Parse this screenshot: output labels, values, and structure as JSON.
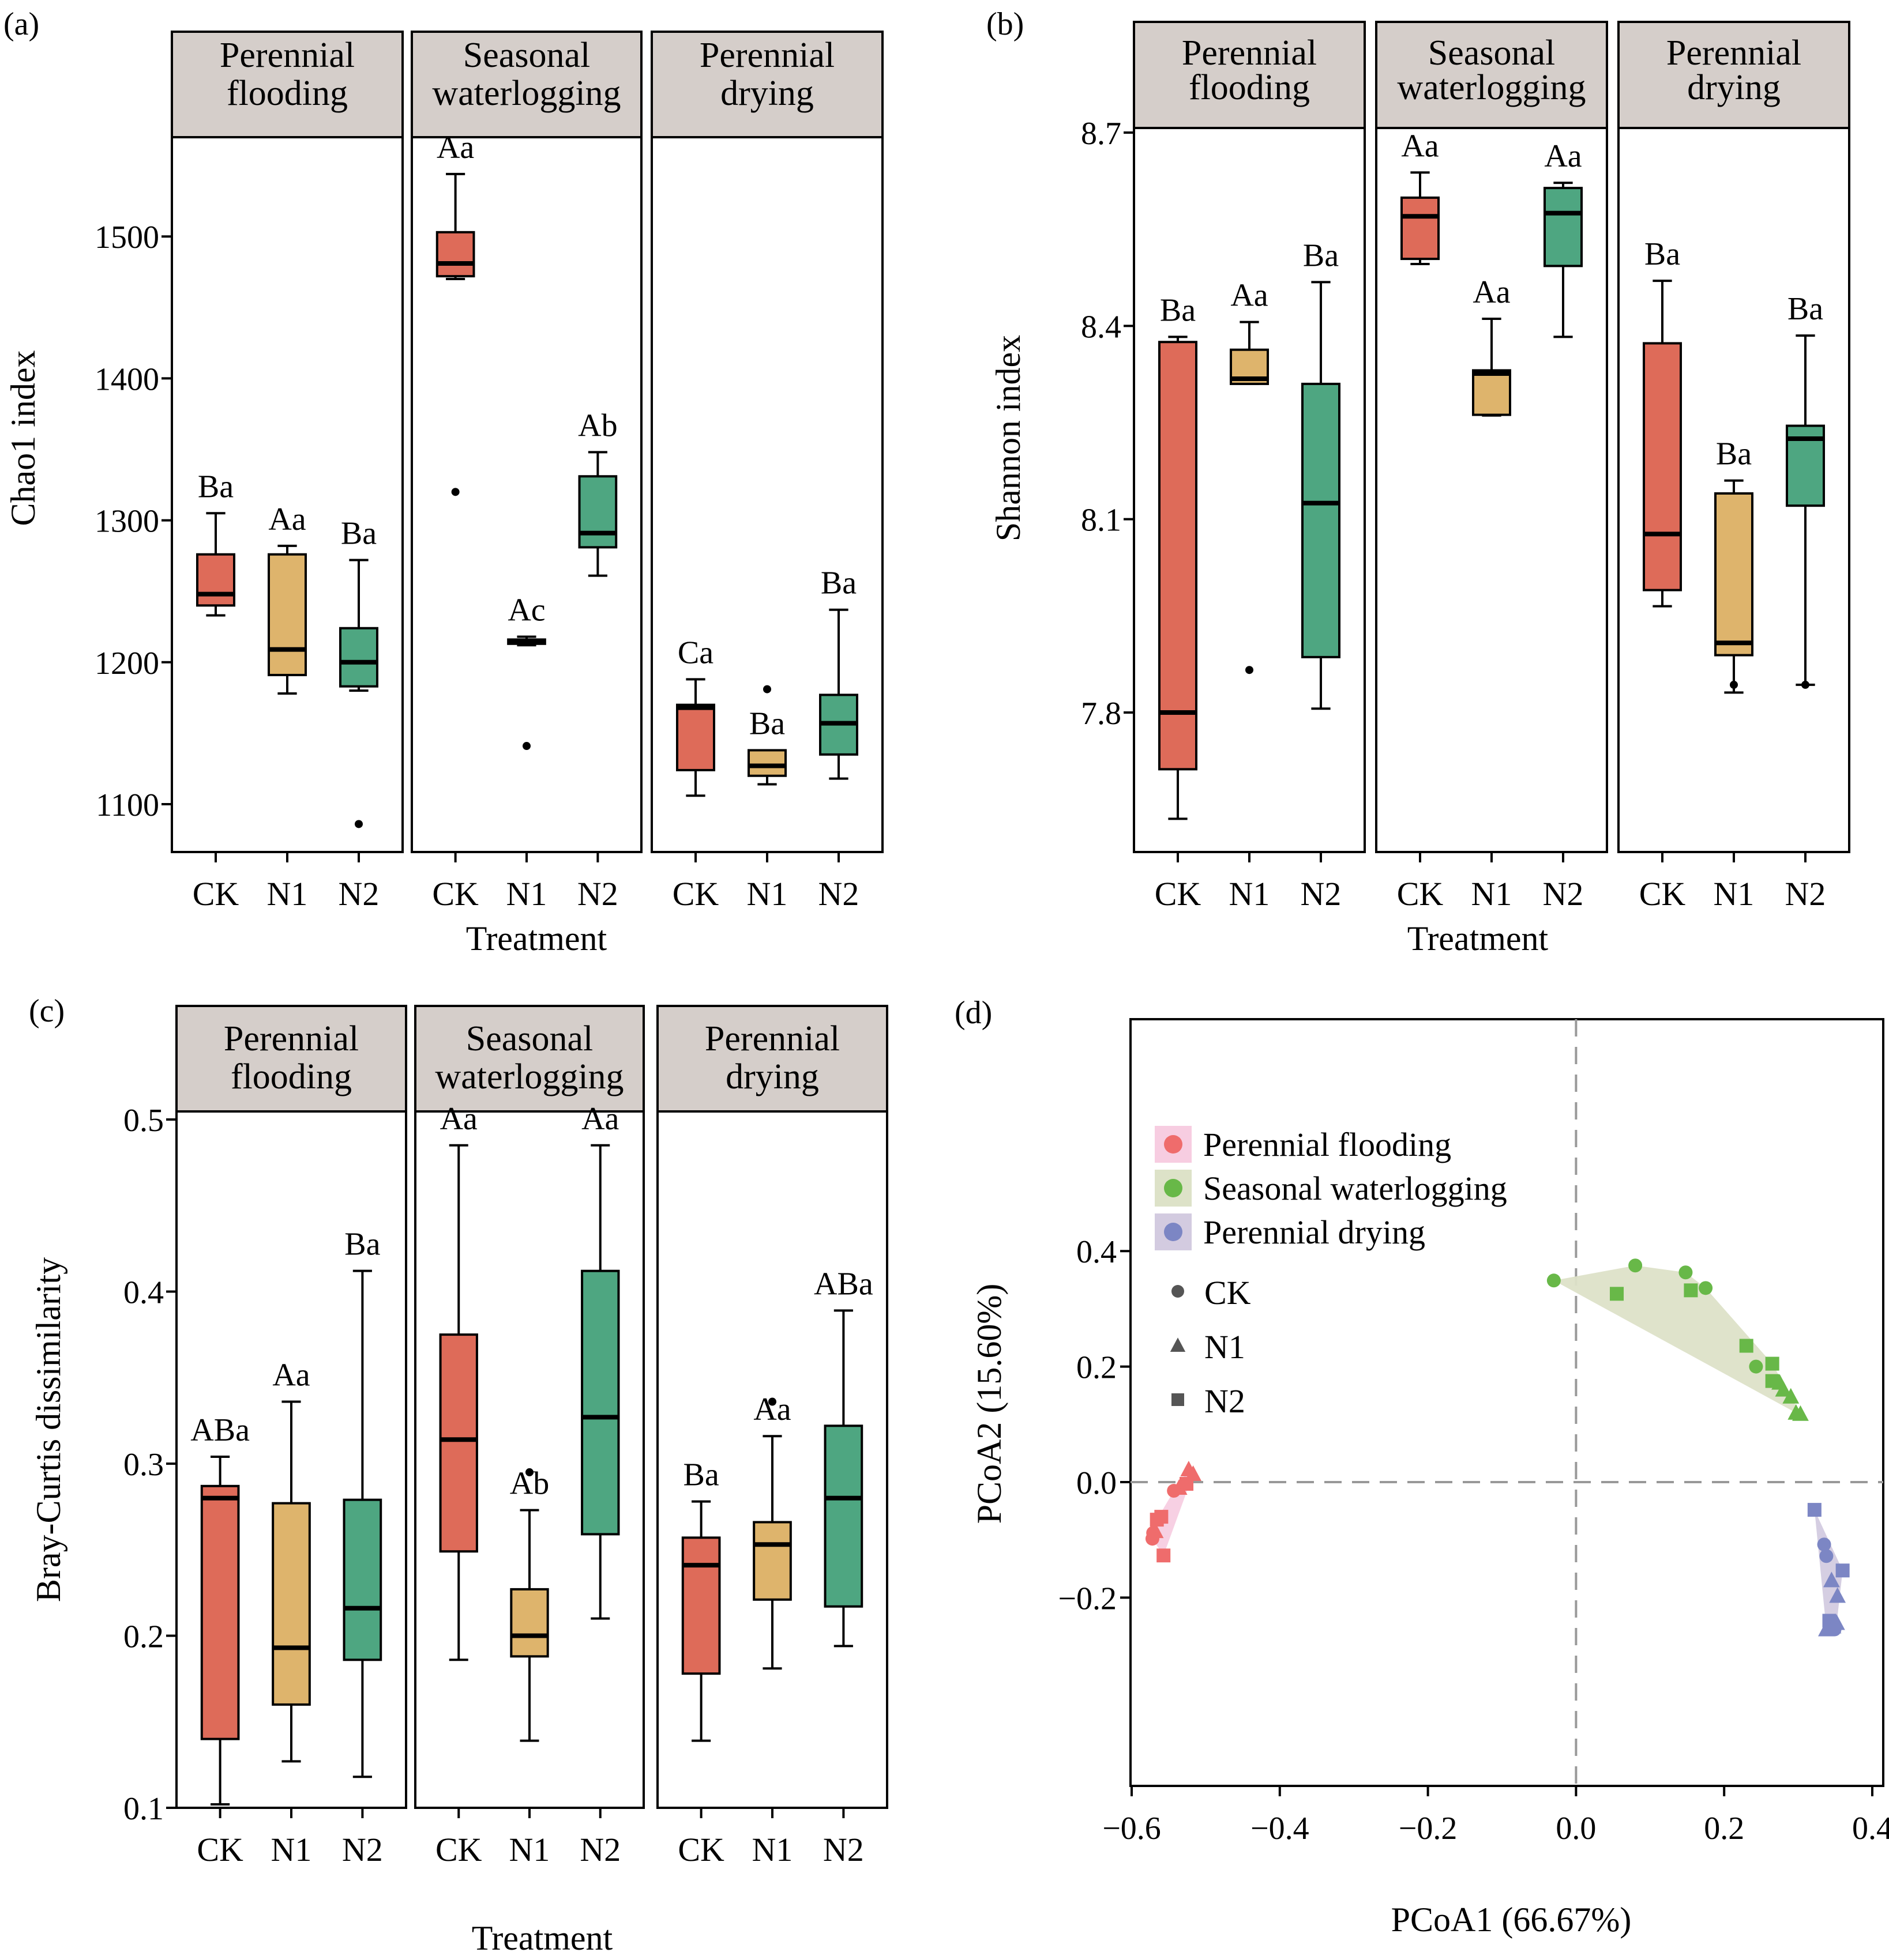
{
  "colors": {
    "CK": "#de6b59",
    "N1": "#deb46c",
    "N2": "#4ea681",
    "strip": "#d5ceca",
    "grid": "#999999",
    "pf": "#ef6c6c",
    "sw": "#68b848",
    "pd": "#7c86c4",
    "hull_pf": "#f7cde1",
    "hull_sw": "#dde2c8",
    "hull_pd": "#d3cbe0"
  },
  "chart_data": [
    {
      "panel_label": "(a)",
      "type": "box",
      "ylabel": "Chao1 index",
      "xlabel": "Treatment",
      "yticks": [
        1100,
        1200,
        1300,
        1400,
        1500
      ],
      "ylim": [
        1065,
        1570
      ],
      "facets": [
        "Perennial flooding",
        "Seasonal waterlogging",
        "Perennial drying"
      ],
      "facet_lines": [
        [
          "Perennial",
          "flooding"
        ],
        [
          "Seasonal",
          "waterlogging"
        ],
        [
          "Perennial",
          "drying"
        ]
      ],
      "categories": [
        "CK",
        "N1",
        "N2"
      ],
      "boxes": [
        [
          {
            "min": 1233,
            "q1": 1240,
            "median": 1248,
            "q3": 1276,
            "max": 1305,
            "outliers": [],
            "label": "Ba"
          },
          {
            "min": 1178,
            "q1": 1191,
            "median": 1209,
            "q3": 1276,
            "max": 1282,
            "outliers": [],
            "label": "Aa"
          },
          {
            "min": 1180,
            "q1": 1183,
            "median": 1200,
            "q3": 1224,
            "max": 1272,
            "outliers": [
              1086
            ],
            "label": "Ba"
          }
        ],
        [
          {
            "min": 1470,
            "q1": 1472,
            "median": 1481,
            "q3": 1503,
            "max": 1544,
            "outliers": [
              1320
            ],
            "label": "Aa"
          },
          {
            "min": 1212,
            "q1": 1213,
            "median": 1215,
            "q3": 1216,
            "max": 1218,
            "outliers": [
              1141
            ],
            "label": "Ac"
          },
          {
            "min": 1261,
            "q1": 1281,
            "median": 1291,
            "q3": 1331,
            "max": 1348,
            "outliers": [],
            "label": "Ab"
          }
        ],
        [
          {
            "min": 1106,
            "q1": 1124,
            "median": 1168,
            "q3": 1170,
            "max": 1188,
            "outliers": [],
            "label": "Ca"
          },
          {
            "min": 1114,
            "q1": 1120,
            "median": 1127,
            "q3": 1138,
            "max": 1138,
            "outliers": [
              1181
            ],
            "label": "Ba"
          },
          {
            "min": 1118,
            "q1": 1135,
            "median": 1157,
            "q3": 1177,
            "max": 1237,
            "outliers": [],
            "label": "Ba"
          }
        ]
      ]
    },
    {
      "panel_label": "(b)",
      "type": "box",
      "ylabel": "Shannon index",
      "xlabel": "Treatment",
      "yticks": [
        7.8,
        8.1,
        8.4,
        8.7
      ],
      "yticklabels": [
        "7.8",
        "8.1",
        "8.4",
        "8.7"
      ],
      "ylim": [
        7.585,
        8.705
      ],
      "facets": [
        "Perennial flooding",
        "Seasonal waterlogging",
        "Perennial drying"
      ],
      "facet_lines": [
        [
          "Perennial",
          "flooding"
        ],
        [
          "Seasonal",
          "waterlogging"
        ],
        [
          "Perennial",
          "drying"
        ]
      ],
      "categories": [
        "CK",
        "N1",
        "N2"
      ],
      "boxes": [
        [
          {
            "min": 7.635,
            "q1": 7.712,
            "median": 7.8,
            "q3": 8.375,
            "max": 8.383,
            "outliers": [],
            "label": "Ba"
          },
          {
            "min": 8.31,
            "q1": 8.31,
            "median": 8.318,
            "q3": 8.363,
            "max": 8.406,
            "outliers": [
              7.866
            ],
            "label": "Aa"
          },
          {
            "min": 7.806,
            "q1": 7.886,
            "median": 8.125,
            "q3": 8.31,
            "max": 8.468,
            "outliers": [],
            "label": "Ba"
          }
        ],
        [
          {
            "min": 8.496,
            "q1": 8.504,
            "median": 8.57,
            "q3": 8.599,
            "max": 8.638,
            "outliers": [],
            "label": "Aa"
          },
          {
            "min": 8.261,
            "q1": 8.262,
            "median": 8.326,
            "q3": 8.331,
            "max": 8.411,
            "outliers": [],
            "label": "Aa"
          },
          {
            "min": 8.383,
            "q1": 8.493,
            "median": 8.575,
            "q3": 8.614,
            "max": 8.622,
            "outliers": [],
            "label": "Aa"
          }
        ],
        [
          {
            "min": 7.965,
            "q1": 7.99,
            "median": 8.077,
            "q3": 8.373,
            "max": 8.47,
            "outliers": [],
            "label": "Ba"
          },
          {
            "min": 7.831,
            "q1": 7.889,
            "median": 7.908,
            "q3": 8.14,
            "max": 8.16,
            "outliers": [
              7.843
            ],
            "label": "Ba"
          },
          {
            "min": 7.843,
            "q1": 8.121,
            "median": 8.225,
            "q3": 8.245,
            "max": 8.385,
            "outliers": [
              7.843
            ],
            "label": "Ba"
          }
        ]
      ]
    },
    {
      "panel_label": "(c)",
      "type": "box",
      "ylabel": "Bray-Curtis dissimilarity",
      "xlabel": "Treatment",
      "yticks": [
        0.1,
        0.2,
        0.3,
        0.4,
        0.5
      ],
      "yticklabels": [
        "0.1",
        "0.2",
        "0.3",
        "0.4",
        "0.5"
      ],
      "ylim": [
        0.1,
        0.5
      ],
      "facets": [
        "Perennial flooding",
        "Seasonal waterlogging",
        "Perennial drying"
      ],
      "facet_lines": [
        [
          "Perennial",
          "flooding"
        ],
        [
          "Seasonal",
          "waterlogging"
        ],
        [
          "Perennial",
          "drying"
        ]
      ],
      "categories": [
        "CK",
        "N1",
        "N2"
      ],
      "boxes": [
        [
          {
            "min": 0.102,
            "q1": 0.14,
            "median": 0.28,
            "q3": 0.287,
            "max": 0.304,
            "outliers": [],
            "label": "ABa"
          },
          {
            "min": 0.127,
            "q1": 0.16,
            "median": 0.193,
            "q3": 0.277,
            "max": 0.336,
            "outliers": [],
            "label": "Aa"
          },
          {
            "min": 0.118,
            "q1": 0.186,
            "median": 0.216,
            "q3": 0.279,
            "max": 0.412,
            "outliers": [],
            "label": "Ba"
          }
        ],
        [
          {
            "min": 0.186,
            "q1": 0.249,
            "median": 0.314,
            "q3": 0.375,
            "max": 0.485,
            "outliers": [],
            "label": "Aa"
          },
          {
            "min": 0.139,
            "q1": 0.188,
            "median": 0.2,
            "q3": 0.227,
            "max": 0.273,
            "outliers": [
              0.295
            ],
            "label": "Ab"
          },
          {
            "min": 0.21,
            "q1": 0.259,
            "median": 0.327,
            "q3": 0.412,
            "max": 0.485,
            "outliers": [],
            "label": "Aa"
          }
        ],
        [
          {
            "min": 0.139,
            "q1": 0.178,
            "median": 0.241,
            "q3": 0.257,
            "max": 0.278,
            "outliers": [],
            "label": "Ba"
          },
          {
            "min": 0.181,
            "q1": 0.221,
            "median": 0.253,
            "q3": 0.266,
            "max": 0.316,
            "outliers": [
              0.336
            ],
            "label": "Aa"
          },
          {
            "min": 0.194,
            "q1": 0.217,
            "median": 0.28,
            "q3": 0.322,
            "max": 0.389,
            "outliers": [],
            "label": "ABa"
          }
        ]
      ]
    },
    {
      "panel_label": "(d)",
      "type": "scatter",
      "xlabel": "PCoA1 (66.67%)",
      "ylabel": "PCoA2 (15.60%)",
      "xlim": [
        -0.6,
        0.4
      ],
      "ylim": [
        -0.25,
        0.4
      ],
      "xticks": [
        -0.6,
        -0.4,
        -0.2,
        0.0,
        0.2,
        0.4
      ],
      "xticklabels": [
        "−0.6",
        "−0.4",
        "−0.2",
        "0.0",
        "0.2",
        "0.4"
      ],
      "yticks": [
        -0.2,
        0.0,
        0.2,
        0.4
      ],
      "yticklabels": [
        "−0.2",
        "0.0",
        "0.2",
        "0.4"
      ],
      "legend_groups": [
        "Perennial flooding",
        "Seasonal waterlogging",
        "Perennial drying"
      ],
      "legend_shapes": [
        "CK",
        "N1",
        "N2"
      ],
      "legend_position": "top-left",
      "series": [
        {
          "group": "Perennial flooding",
          "points": [
            {
              "x": -0.523,
              "y": 0.022,
              "shape": "N1"
            },
            {
              "x": -0.517,
              "y": 0.014,
              "shape": "N1"
            },
            {
              "x": -0.526,
              "y": -0.003,
              "shape": "N2"
            },
            {
              "x": -0.536,
              "y": -0.01,
              "shape": "N1"
            },
            {
              "x": -0.543,
              "y": -0.015,
              "shape": "CK"
            },
            {
              "x": -0.56,
              "y": -0.06,
              "shape": "N2"
            },
            {
              "x": -0.566,
              "y": -0.065,
              "shape": "N2"
            },
            {
              "x": -0.568,
              "y": -0.085,
              "shape": "N1"
            },
            {
              "x": -0.571,
              "y": -0.088,
              "shape": "CK"
            },
            {
              "x": -0.572,
              "y": -0.098,
              "shape": "CK"
            },
            {
              "x": -0.557,
              "y": -0.127,
              "shape": "N2"
            }
          ]
        },
        {
          "group": "Seasonal waterlogging",
          "points": [
            {
              "x": -0.03,
              "y": 0.349,
              "shape": "CK"
            },
            {
              "x": 0.08,
              "y": 0.375,
              "shape": "CK"
            },
            {
              "x": 0.148,
              "y": 0.363,
              "shape": "CK"
            },
            {
              "x": 0.175,
              "y": 0.336,
              "shape": "CK"
            },
            {
              "x": 0.155,
              "y": 0.332,
              "shape": "N2"
            },
            {
              "x": 0.055,
              "y": 0.326,
              "shape": "N2"
            },
            {
              "x": 0.23,
              "y": 0.236,
              "shape": "N2"
            },
            {
              "x": 0.265,
              "y": 0.205,
              "shape": "N2"
            },
            {
              "x": 0.243,
              "y": 0.2,
              "shape": "CK"
            },
            {
              "x": 0.265,
              "y": 0.175,
              "shape": "N2"
            },
            {
              "x": 0.275,
              "y": 0.172,
              "shape": "N1"
            },
            {
              "x": 0.28,
              "y": 0.16,
              "shape": "N1"
            },
            {
              "x": 0.29,
              "y": 0.148,
              "shape": "N1"
            },
            {
              "x": 0.297,
              "y": 0.12,
              "shape": "N1"
            },
            {
              "x": 0.303,
              "y": 0.118,
              "shape": "N1"
            }
          ]
        },
        {
          "group": "Perennial drying",
          "points": [
            {
              "x": 0.322,
              "y": -0.048,
              "shape": "N2"
            },
            {
              "x": 0.335,
              "y": -0.108,
              "shape": "CK"
            },
            {
              "x": 0.338,
              "y": -0.128,
              "shape": "CK"
            },
            {
              "x": 0.36,
              "y": -0.153,
              "shape": "N2"
            },
            {
              "x": 0.345,
              "y": -0.17,
              "shape": "N1"
            },
            {
              "x": 0.353,
              "y": -0.197,
              "shape": "N1"
            },
            {
              "x": 0.342,
              "y": -0.24,
              "shape": "N2"
            },
            {
              "x": 0.347,
              "y": -0.25,
              "shape": "N1"
            },
            {
              "x": 0.352,
              "y": -0.244,
              "shape": "N1"
            },
            {
              "x": 0.349,
              "y": -0.255,
              "shape": "CK"
            },
            {
              "x": 0.338,
              "y": -0.255,
              "shape": "N1"
            }
          ]
        }
      ]
    }
  ]
}
